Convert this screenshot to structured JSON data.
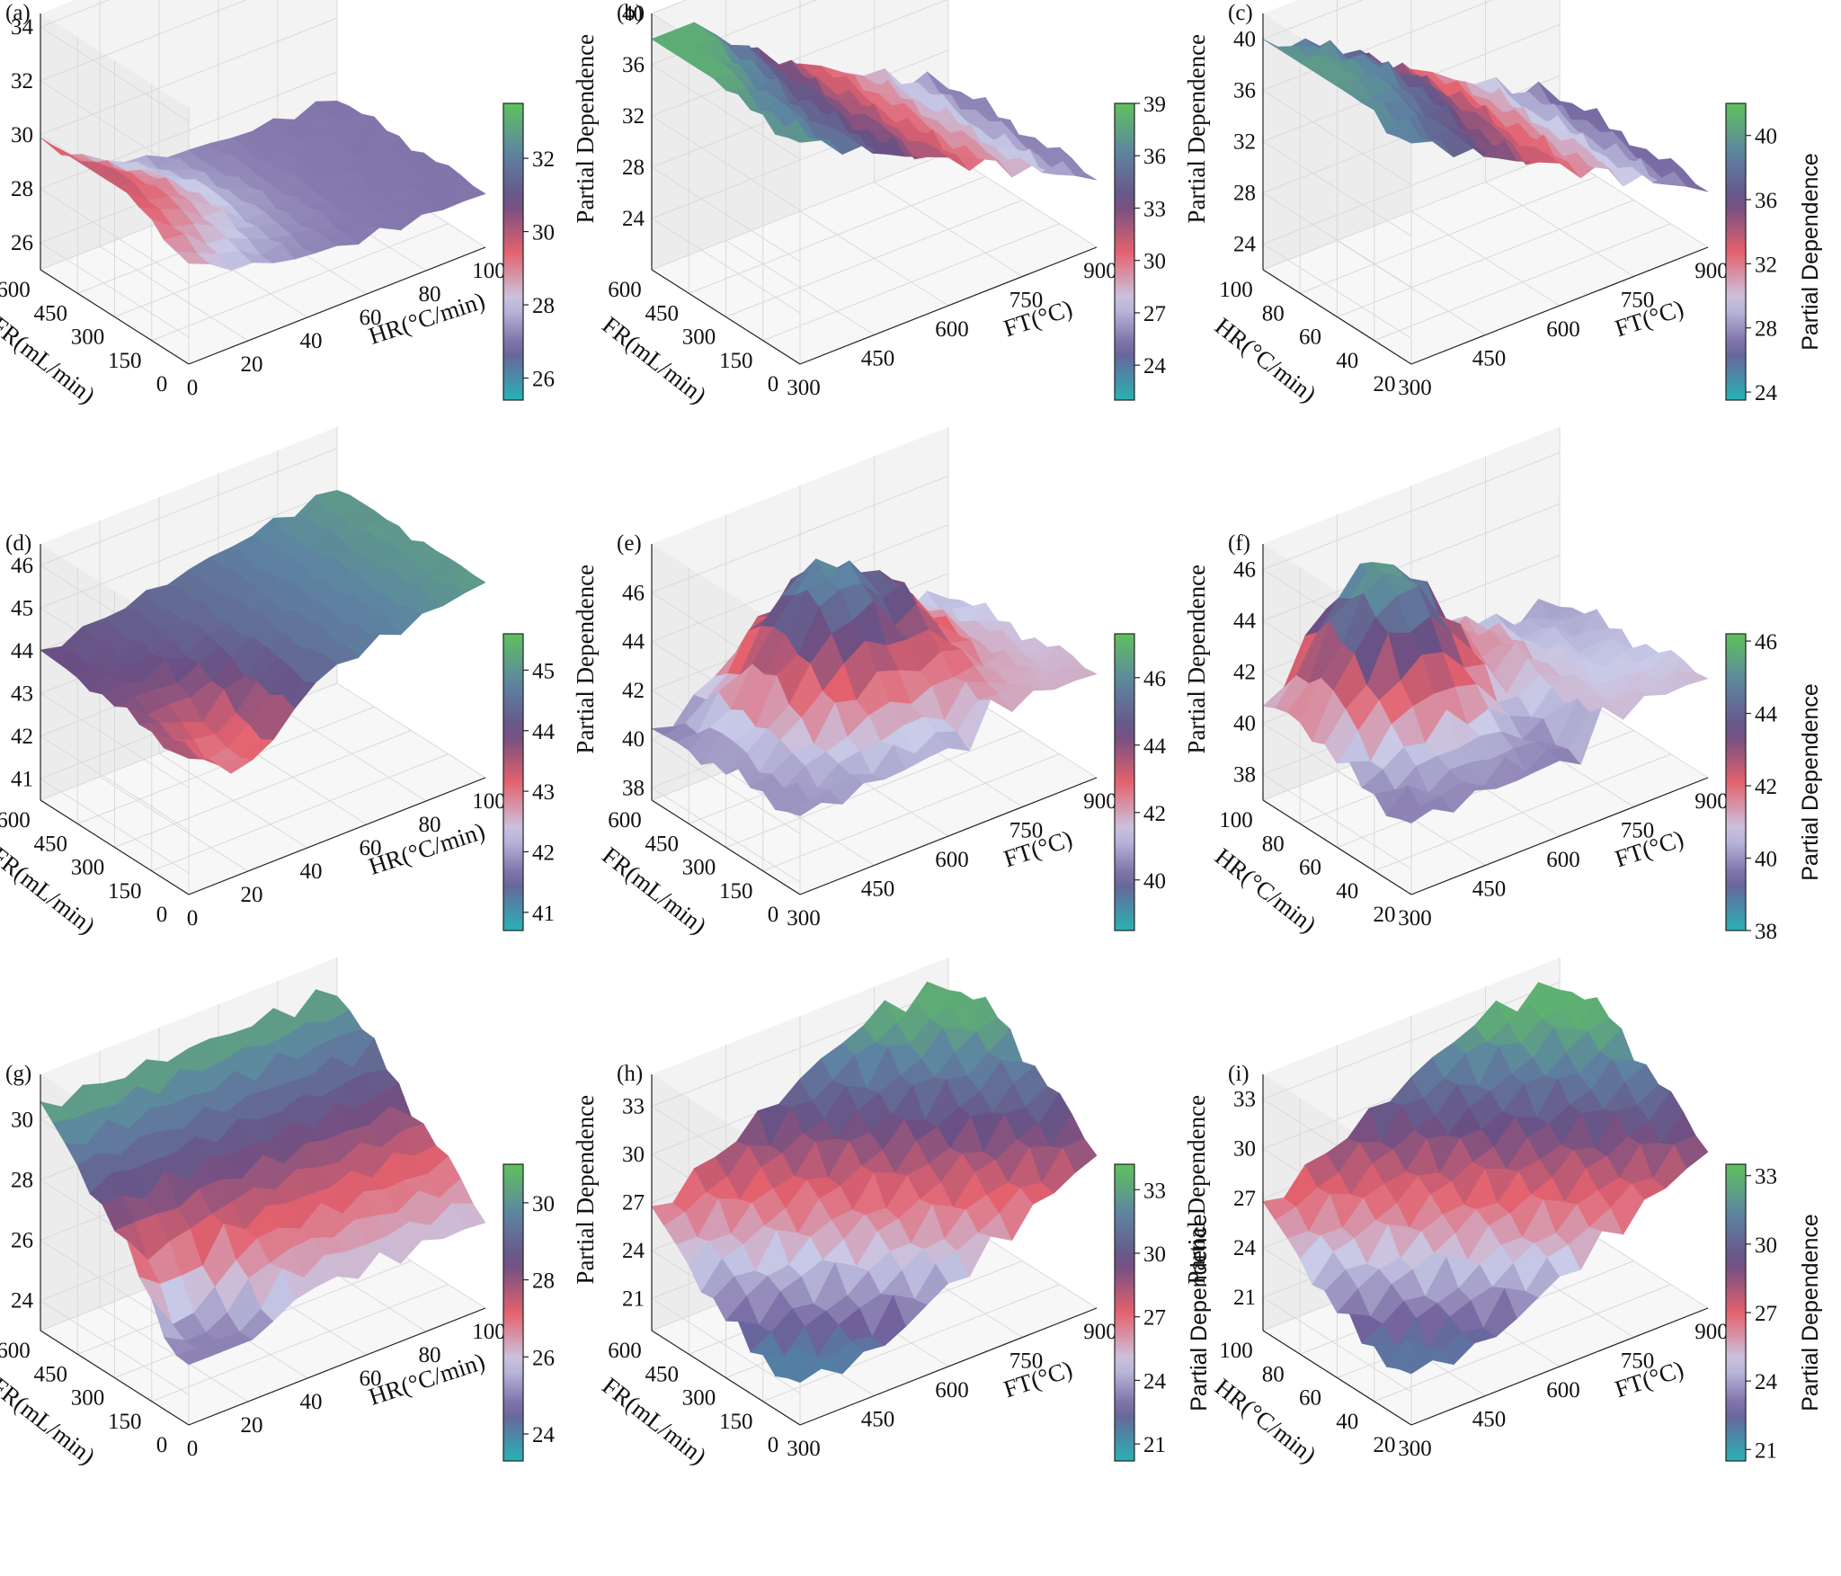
{
  "colormap": [
    "#27b2b2",
    "#6f5f9b",
    "#c9cbe8",
    "#e4616d",
    "#6a4f84",
    "#5d84a3",
    "#5fc25c"
  ],
  "chart_data": [
    {
      "panel": "(a)",
      "type": "surface",
      "x_label": "HR(°C/min)",
      "x_ticks": [
        "0",
        "20",
        "40",
        "60",
        "80",
        "100"
      ],
      "y_label": "FR(mL/min)",
      "y_ticks": [
        "0",
        "150",
        "300",
        "450",
        "600"
      ],
      "z_label": "",
      "z_ticks": [
        "26",
        "28",
        "30",
        "32",
        "34"
      ],
      "z_range": [
        25,
        34.5
      ],
      "colorbar_ticks": [
        "26",
        "28",
        "30",
        "32"
      ],
      "colorbar_label": "",
      "cb_range": [
        25.4,
        33.5
      ],
      "peak": [
        0.12,
        0.52
      ],
      "base": 26.5,
      "amp": 3.4,
      "shape": "ridge_decay"
    },
    {
      "panel": "(b)",
      "type": "surface",
      "x_label": "FT(°C)",
      "x_ticks": [
        "300",
        "450",
        "600",
        "750",
        "900"
      ],
      "y_label": "FR(mL/min)",
      "y_ticks": [
        "0",
        "150",
        "300",
        "450",
        "600"
      ],
      "z_label": "Partial Dependence",
      "z_ticks": [
        "24",
        "28",
        "32",
        "36",
        "40"
      ],
      "z_range": [
        20,
        40
      ],
      "colorbar_ticks": [
        "24",
        "27",
        "30",
        "33",
        "36",
        "39"
      ],
      "colorbar_label": "",
      "cb_range": [
        22,
        39
      ],
      "peak": [
        0.0,
        0.9
      ],
      "base": 24,
      "amp": 14,
      "shape": "slope_x"
    },
    {
      "panel": "(c)",
      "type": "surface",
      "x_label": "FT(°C)",
      "x_ticks": [
        "300",
        "450",
        "600",
        "750",
        "900"
      ],
      "y_label": "HR(°C/min)",
      "y_ticks": [
        "20",
        "40",
        "60",
        "80",
        "100"
      ],
      "z_label": "Partial Dependence",
      "z_ticks": [
        "24",
        "28",
        "32",
        "36",
        "40"
      ],
      "z_range": [
        22,
        42
      ],
      "colorbar_ticks": [
        "24",
        "28",
        "32",
        "36",
        "40"
      ],
      "colorbar_label": "Partial Dependence",
      "cb_range": [
        23.5,
        42
      ],
      "peak": [
        0.15,
        0.5
      ],
      "base": 25,
      "amp": 15,
      "shape": "slope_x"
    },
    {
      "panel": "(d)",
      "type": "surface",
      "x_label": "HR(°C/min)",
      "x_ticks": [
        "0",
        "20",
        "40",
        "60",
        "80",
        "100"
      ],
      "y_label": "FR(mL/min)",
      "y_ticks": [
        "0",
        "150",
        "300",
        "450",
        "600"
      ],
      "z_label": "",
      "z_ticks": [
        "41",
        "42",
        "43",
        "44",
        "45",
        "46"
      ],
      "z_range": [
        40.5,
        46.5
      ],
      "colorbar_ticks": [
        "41",
        "42",
        "43",
        "44",
        "45"
      ],
      "colorbar_label": "",
      "cb_range": [
        40.7,
        45.6
      ],
      "peak": [
        0.2,
        0.15
      ],
      "base": 42.5,
      "amp": 2.6,
      "shape": "valley_rise"
    },
    {
      "panel": "(e)",
      "type": "surface",
      "x_label": "FT(°C)",
      "x_ticks": [
        "300",
        "450",
        "600",
        "750",
        "900"
      ],
      "y_label": "FR(mL/min)",
      "y_ticks": [
        "0",
        "150",
        "300",
        "450",
        "600"
      ],
      "z_label": "Partial Dependence",
      "z_ticks": [
        "38",
        "40",
        "42",
        "44",
        "46"
      ],
      "z_range": [
        37.5,
        48
      ],
      "colorbar_ticks": [
        "40",
        "42",
        "44",
        "46"
      ],
      "colorbar_label": "",
      "cb_range": [
        38.5,
        47.3
      ],
      "peak": [
        0.45,
        0.7
      ],
      "base": 40,
      "amp": 7,
      "shape": "hump"
    },
    {
      "panel": "(f)",
      "type": "surface",
      "x_label": "FT(°C)",
      "x_ticks": [
        "300",
        "450",
        "600",
        "750",
        "900"
      ],
      "y_label": "HR(°C/min)",
      "y_ticks": [
        "20",
        "40",
        "60",
        "80",
        "100"
      ],
      "z_label": "Partial Dependence",
      "z_ticks": [
        "38",
        "40",
        "42",
        "44",
        "46"
      ],
      "z_range": [
        37,
        47
      ],
      "colorbar_ticks": [
        "38",
        "40",
        "42",
        "44",
        "46"
      ],
      "colorbar_label": "Partial Dependence",
      "cb_range": [
        38,
        46.2
      ],
      "peak": [
        0.3,
        0.8
      ],
      "base": 39,
      "amp": 7.5,
      "shape": "hump"
    },
    {
      "panel": "(g)",
      "type": "surface",
      "x_label": "HR(°C/min)",
      "x_ticks": [
        "0",
        "20",
        "40",
        "60",
        "80",
        "100"
      ],
      "y_label": "FR(mL/min)",
      "y_ticks": [
        "0",
        "150",
        "300",
        "450",
        "600"
      ],
      "z_label": "",
      "z_ticks": [
        "24",
        "26",
        "28",
        "30"
      ],
      "z_range": [
        23,
        31.5
      ],
      "colorbar_ticks": [
        "24",
        "26",
        "28",
        "30"
      ],
      "colorbar_label": "",
      "cb_range": [
        23.3,
        31
      ],
      "peak": [
        0.3,
        0.85
      ],
      "base": 25,
      "amp": 6,
      "shape": "plateau_y"
    },
    {
      "panel": "(h)",
      "type": "surface",
      "x_label": "FT(°C)",
      "x_ticks": [
        "300",
        "450",
        "600",
        "750",
        "900"
      ],
      "y_label": "FR(mL/min)",
      "y_ticks": [
        "0",
        "150",
        "300",
        "450",
        "600"
      ],
      "z_label": "Partial Dependence",
      "z_ticks": [
        "21",
        "24",
        "27",
        "30",
        "33"
      ],
      "z_range": [
        19,
        35
      ],
      "colorbar_ticks": [
        "21",
        "24",
        "27",
        "30",
        "33"
      ],
      "colorbar_label": "Partial Dependence",
      "cb_range": [
        20.2,
        34.2
      ],
      "peak": [
        0.7,
        0.8
      ],
      "base": 21,
      "amp": 13,
      "shape": "rise_xy"
    },
    {
      "panel": "(i)",
      "type": "surface",
      "x_label": "FT(°C)",
      "x_ticks": [
        "300",
        "450",
        "600",
        "750",
        "900"
      ],
      "y_label": "HR(°C/min)",
      "y_ticks": [
        "20",
        "40",
        "60",
        "80",
        "100"
      ],
      "z_label": "Partial Dependence",
      "z_ticks": [
        "21",
        "24",
        "27",
        "30",
        "33"
      ],
      "z_range": [
        19,
        34.5
      ],
      "colorbar_ticks": [
        "21",
        "24",
        "27",
        "30",
        "33"
      ],
      "colorbar_label": "Partial Dependence",
      "cb_range": [
        20.5,
        33.5
      ],
      "peak": [
        0.75,
        0.7
      ],
      "base": 21.5,
      "amp": 12,
      "shape": "rise_xy"
    }
  ]
}
